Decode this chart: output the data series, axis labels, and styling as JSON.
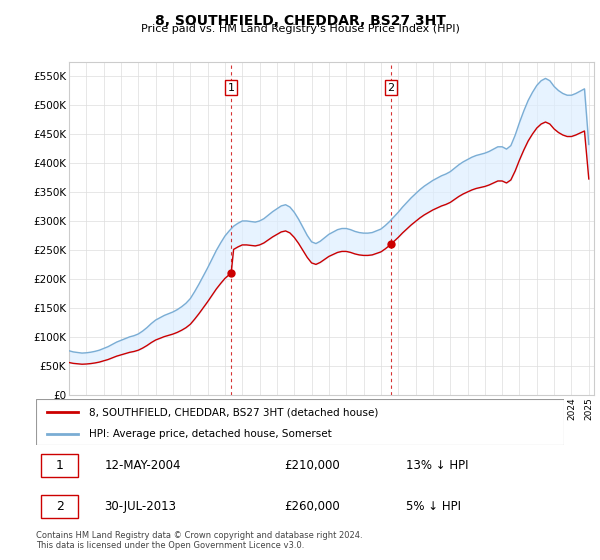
{
  "title": "8, SOUTHFIELD, CHEDDAR, BS27 3HT",
  "subtitle": "Price paid vs. HM Land Registry's House Price Index (HPI)",
  "background_color": "#ffffff",
  "grid_color": "#dddddd",
  "hpi_color": "#7aadd4",
  "price_color": "#cc0000",
  "fill_color": "#ddeeff",
  "vline_color": "#cc0000",
  "ylim": [
    0,
    575000
  ],
  "yticks": [
    0,
    50000,
    100000,
    150000,
    200000,
    250000,
    300000,
    350000,
    400000,
    450000,
    500000,
    550000
  ],
  "ytick_labels": [
    "£0",
    "£50K",
    "£100K",
    "£150K",
    "£200K",
    "£250K",
    "£300K",
    "£350K",
    "£400K",
    "£450K",
    "£500K",
    "£550K"
  ],
  "sale1_year": 2004.36,
  "sale1_price": 210000,
  "sale2_year": 2013.58,
  "sale2_price": 260000,
  "legend_label_red": "8, SOUTHFIELD, CHEDDAR, BS27 3HT (detached house)",
  "legend_label_blue": "HPI: Average price, detached house, Somerset",
  "table_row1_date": "12-MAY-2004",
  "table_row1_price": "£210,000",
  "table_row1_hpi": "13% ↓ HPI",
  "table_row2_date": "30-JUL-2013",
  "table_row2_price": "£260,000",
  "table_row2_hpi": "5% ↓ HPI",
  "footer": "Contains HM Land Registry data © Crown copyright and database right 2024.\nThis data is licensed under the Open Government Licence v3.0.",
  "hpi_years": [
    1995.0,
    1995.25,
    1995.5,
    1995.75,
    1996.0,
    1996.25,
    1996.5,
    1996.75,
    1997.0,
    1997.25,
    1997.5,
    1997.75,
    1998.0,
    1998.25,
    1998.5,
    1998.75,
    1999.0,
    1999.25,
    1999.5,
    1999.75,
    2000.0,
    2000.25,
    2000.5,
    2000.75,
    2001.0,
    2001.25,
    2001.5,
    2001.75,
    2002.0,
    2002.25,
    2002.5,
    2002.75,
    2003.0,
    2003.25,
    2003.5,
    2003.75,
    2004.0,
    2004.25,
    2004.5,
    2004.75,
    2005.0,
    2005.25,
    2005.5,
    2005.75,
    2006.0,
    2006.25,
    2006.5,
    2006.75,
    2007.0,
    2007.25,
    2007.5,
    2007.75,
    2008.0,
    2008.25,
    2008.5,
    2008.75,
    2009.0,
    2009.25,
    2009.5,
    2009.75,
    2010.0,
    2010.25,
    2010.5,
    2010.75,
    2011.0,
    2011.25,
    2011.5,
    2011.75,
    2012.0,
    2012.25,
    2012.5,
    2012.75,
    2013.0,
    2013.25,
    2013.5,
    2013.75,
    2014.0,
    2014.25,
    2014.5,
    2014.75,
    2015.0,
    2015.25,
    2015.5,
    2015.75,
    2016.0,
    2016.25,
    2016.5,
    2016.75,
    2017.0,
    2017.25,
    2017.5,
    2017.75,
    2018.0,
    2018.25,
    2018.5,
    2018.75,
    2019.0,
    2019.25,
    2019.5,
    2019.75,
    2020.0,
    2020.25,
    2020.5,
    2020.75,
    2021.0,
    2021.25,
    2021.5,
    2021.75,
    2022.0,
    2022.25,
    2022.5,
    2022.75,
    2023.0,
    2023.25,
    2023.5,
    2023.75,
    2024.0,
    2024.25,
    2024.5,
    2024.75,
    2025.0
  ],
  "hpi_values": [
    76000,
    74000,
    73000,
    72000,
    72500,
    73500,
    75000,
    77000,
    80000,
    83000,
    87000,
    91000,
    94000,
    97000,
    100000,
    102000,
    105000,
    110000,
    116000,
    123000,
    129000,
    133000,
    137000,
    140000,
    143000,
    147000,
    152000,
    158000,
    166000,
    178000,
    191000,
    205000,
    219000,
    234000,
    249000,
    262000,
    274000,
    283000,
    291000,
    296000,
    300000,
    300000,
    299000,
    298000,
    300000,
    304000,
    310000,
    316000,
    321000,
    326000,
    328000,
    324000,
    315000,
    303000,
    289000,
    275000,
    264000,
    261000,
    265000,
    271000,
    277000,
    281000,
    285000,
    287000,
    287000,
    285000,
    282000,
    280000,
    279000,
    279000,
    280000,
    283000,
    286000,
    292000,
    299000,
    307000,
    315000,
    324000,
    332000,
    340000,
    347000,
    354000,
    360000,
    365000,
    370000,
    374000,
    378000,
    381000,
    385000,
    391000,
    397000,
    402000,
    406000,
    410000,
    413000,
    415000,
    417000,
    420000,
    424000,
    428000,
    428000,
    424000,
    430000,
    448000,
    470000,
    490000,
    508000,
    522000,
    534000,
    542000,
    546000,
    542000,
    532000,
    525000,
    520000,
    517000,
    517000,
    520000,
    524000,
    528000,
    432000
  ]
}
